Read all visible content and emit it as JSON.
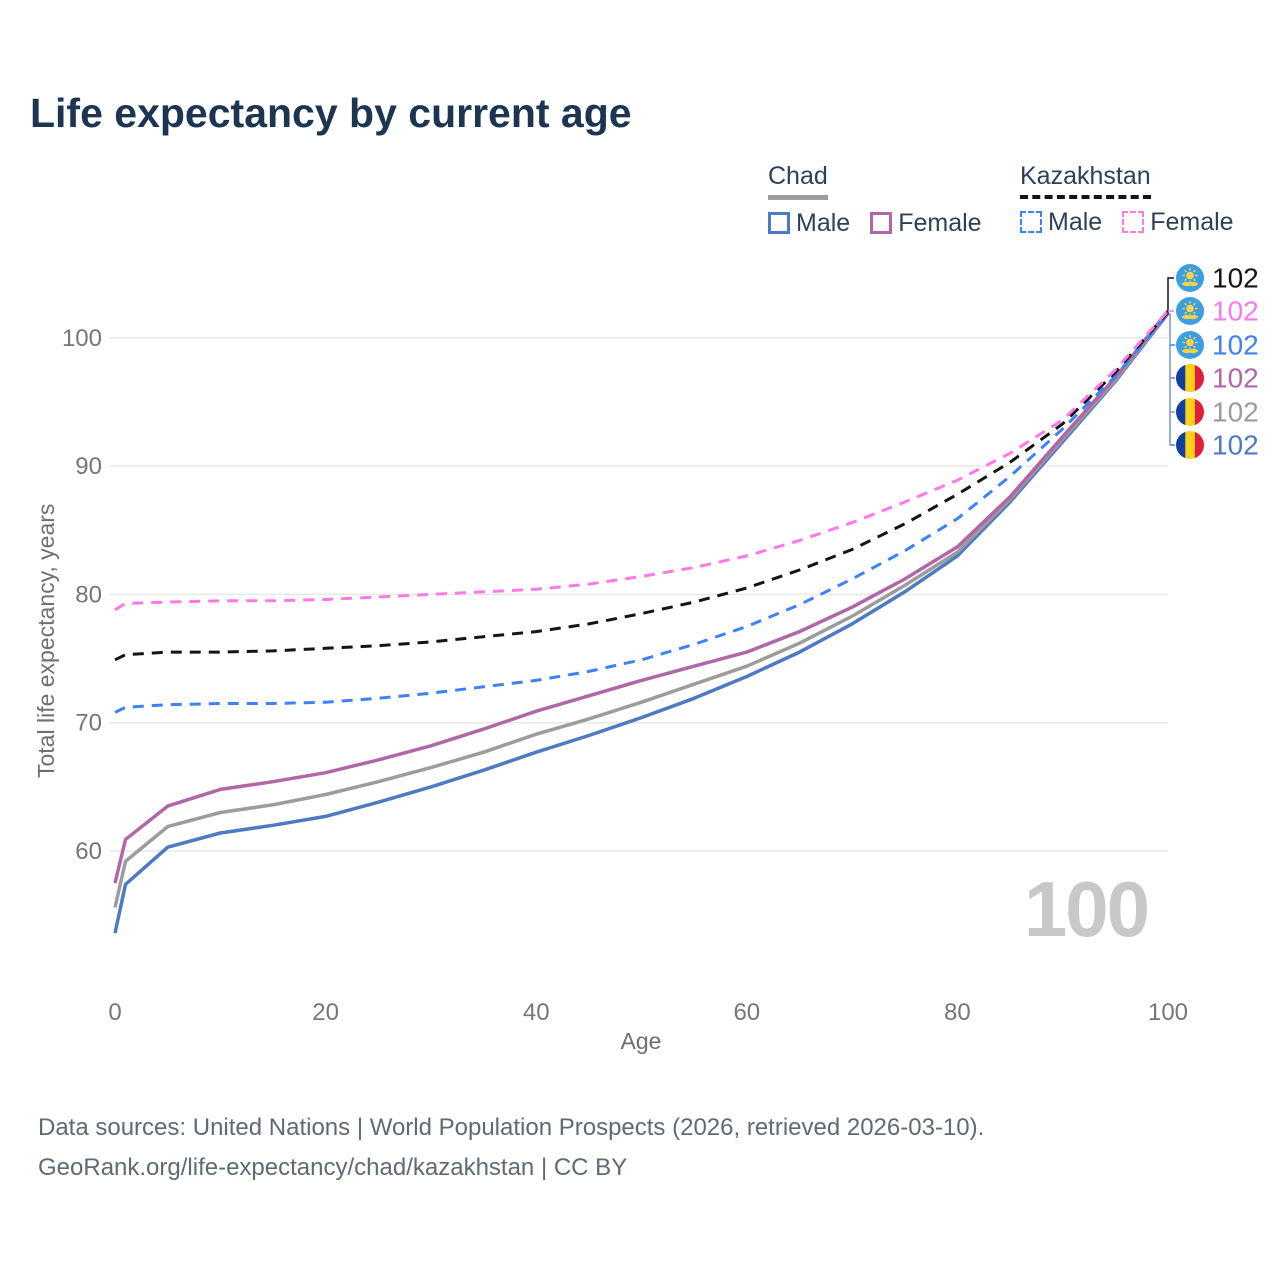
{
  "title": "Life expectancy by current age",
  "watermark": "100",
  "legend": {
    "groups": [
      {
        "label": "Chad",
        "line_style": "solid",
        "underline_color": "#9c9c9c",
        "items": [
          {
            "label": "Male",
            "series_id": "chad-male",
            "dashed": false
          },
          {
            "label": "Female",
            "series_id": "chad-female",
            "dashed": false
          }
        ]
      },
      {
        "label": "Kazakhstan",
        "line_style": "dashed",
        "underline_color": "#141414",
        "items": [
          {
            "label": "Male",
            "series_id": "kazakhstan-male",
            "dashed": true
          },
          {
            "label": "Female",
            "series_id": "kazakhstan-female",
            "dashed": true
          }
        ]
      }
    ]
  },
  "chart_data": {
    "type": "line",
    "title": "Life expectancy by current age",
    "xlabel": "Age",
    "ylabel": "Total life expectancy, years",
    "x_ticks": [
      0,
      20,
      40,
      60,
      80,
      100
    ],
    "y_ticks": [
      60,
      70,
      80,
      90,
      100
    ],
    "xlim": [
      0,
      100
    ],
    "ylim": [
      52,
      104
    ],
    "grid": "horizontal",
    "x": [
      0,
      1,
      5,
      10,
      15,
      20,
      25,
      30,
      35,
      40,
      45,
      50,
      55,
      60,
      65,
      70,
      75,
      80,
      85,
      90,
      95,
      100
    ],
    "series": [
      {
        "id": "chad-male",
        "name": "Chad — Male",
        "color": "#4d7ac2",
        "dashed": false,
        "values": [
          53.6,
          57.4,
          60.3,
          61.4,
          62.0,
          62.7,
          63.8,
          65.0,
          66.3,
          67.7,
          69.0,
          70.4,
          71.9,
          73.6,
          75.5,
          77.7,
          80.2,
          83.0,
          87.2,
          91.9,
          96.6,
          101.9
        ]
      },
      {
        "id": "chad-all",
        "name": "Chad",
        "color": "#9c9c9c",
        "dashed": false,
        "values": [
          55.6,
          59.2,
          61.9,
          63.0,
          63.6,
          64.4,
          65.4,
          66.5,
          67.7,
          69.1,
          70.3,
          71.6,
          73.0,
          74.4,
          76.2,
          78.3,
          80.7,
          83.3,
          87.4,
          92.1,
          96.7,
          102.0
        ]
      },
      {
        "id": "chad-female",
        "name": "Chad — Female",
        "color": "#b167a6",
        "dashed": false,
        "values": [
          57.5,
          60.9,
          63.5,
          64.8,
          65.4,
          66.1,
          67.1,
          68.2,
          69.5,
          70.9,
          72.1,
          73.3,
          74.4,
          75.5,
          77.1,
          79.0,
          81.2,
          83.7,
          87.6,
          92.3,
          96.9,
          102.1
        ]
      },
      {
        "id": "kazakhstan-male",
        "name": "Kazakhstan — Male",
        "color": "#3d82f6",
        "dashed": true,
        "values": [
          70.8,
          71.2,
          71.4,
          71.5,
          71.5,
          71.6,
          71.9,
          72.3,
          72.8,
          73.3,
          74.0,
          74.9,
          76.1,
          77.5,
          79.2,
          81.2,
          83.4,
          85.9,
          89.2,
          92.9,
          97.0,
          101.9
        ]
      },
      {
        "id": "kazakhstan-all",
        "name": "Kazakhstan",
        "color": "#141414",
        "dashed": true,
        "values": [
          74.9,
          75.3,
          75.5,
          75.5,
          75.6,
          75.8,
          76.0,
          76.3,
          76.7,
          77.1,
          77.7,
          78.5,
          79.4,
          80.5,
          81.9,
          83.5,
          85.5,
          87.8,
          90.3,
          93.3,
          97.3,
          102.0
        ]
      },
      {
        "id": "kazakhstan-female",
        "name": "Kazakhstan — Female",
        "color": "#ff78e8",
        "dashed": true,
        "values": [
          78.8,
          79.3,
          79.4,
          79.5,
          79.5,
          79.6,
          79.8,
          80.0,
          80.2,
          80.4,
          80.8,
          81.4,
          82.1,
          83.0,
          84.2,
          85.6,
          87.2,
          88.9,
          91.0,
          93.6,
          97.5,
          102.1
        ]
      }
    ],
    "end_labels": [
      {
        "text": "102",
        "flag": "kazakhstan",
        "series_id": "kazakhstan-all"
      },
      {
        "text": "102",
        "flag": "kazakhstan",
        "series_id": "kazakhstan-female"
      },
      {
        "text": "102",
        "flag": "kazakhstan",
        "series_id": "kazakhstan-male"
      },
      {
        "text": "102",
        "flag": "chad",
        "series_id": "chad-female"
      },
      {
        "text": "102",
        "flag": "chad",
        "series_id": "chad-all"
      },
      {
        "text": "102",
        "flag": "chad",
        "series_id": "chad-male"
      }
    ],
    "colors": {
      "grid": "#e8e8e8",
      "tick_text": "#767676",
      "kazakhstan_flag_base": "#3b9fe3",
      "kazakhstan_flag_gold": "#ffd342",
      "chad_flag_blue": "#10409f",
      "chad_flag_yellow": "#ffd117",
      "chad_flag_red": "#e01e37"
    }
  },
  "footer": {
    "line1": "Data sources: United Nations | World Population Prospects (2026, retrieved 2026-03-10).",
    "line2": "GeoRank.org/life-expectancy/chad/kazakhstan | CC BY"
  }
}
